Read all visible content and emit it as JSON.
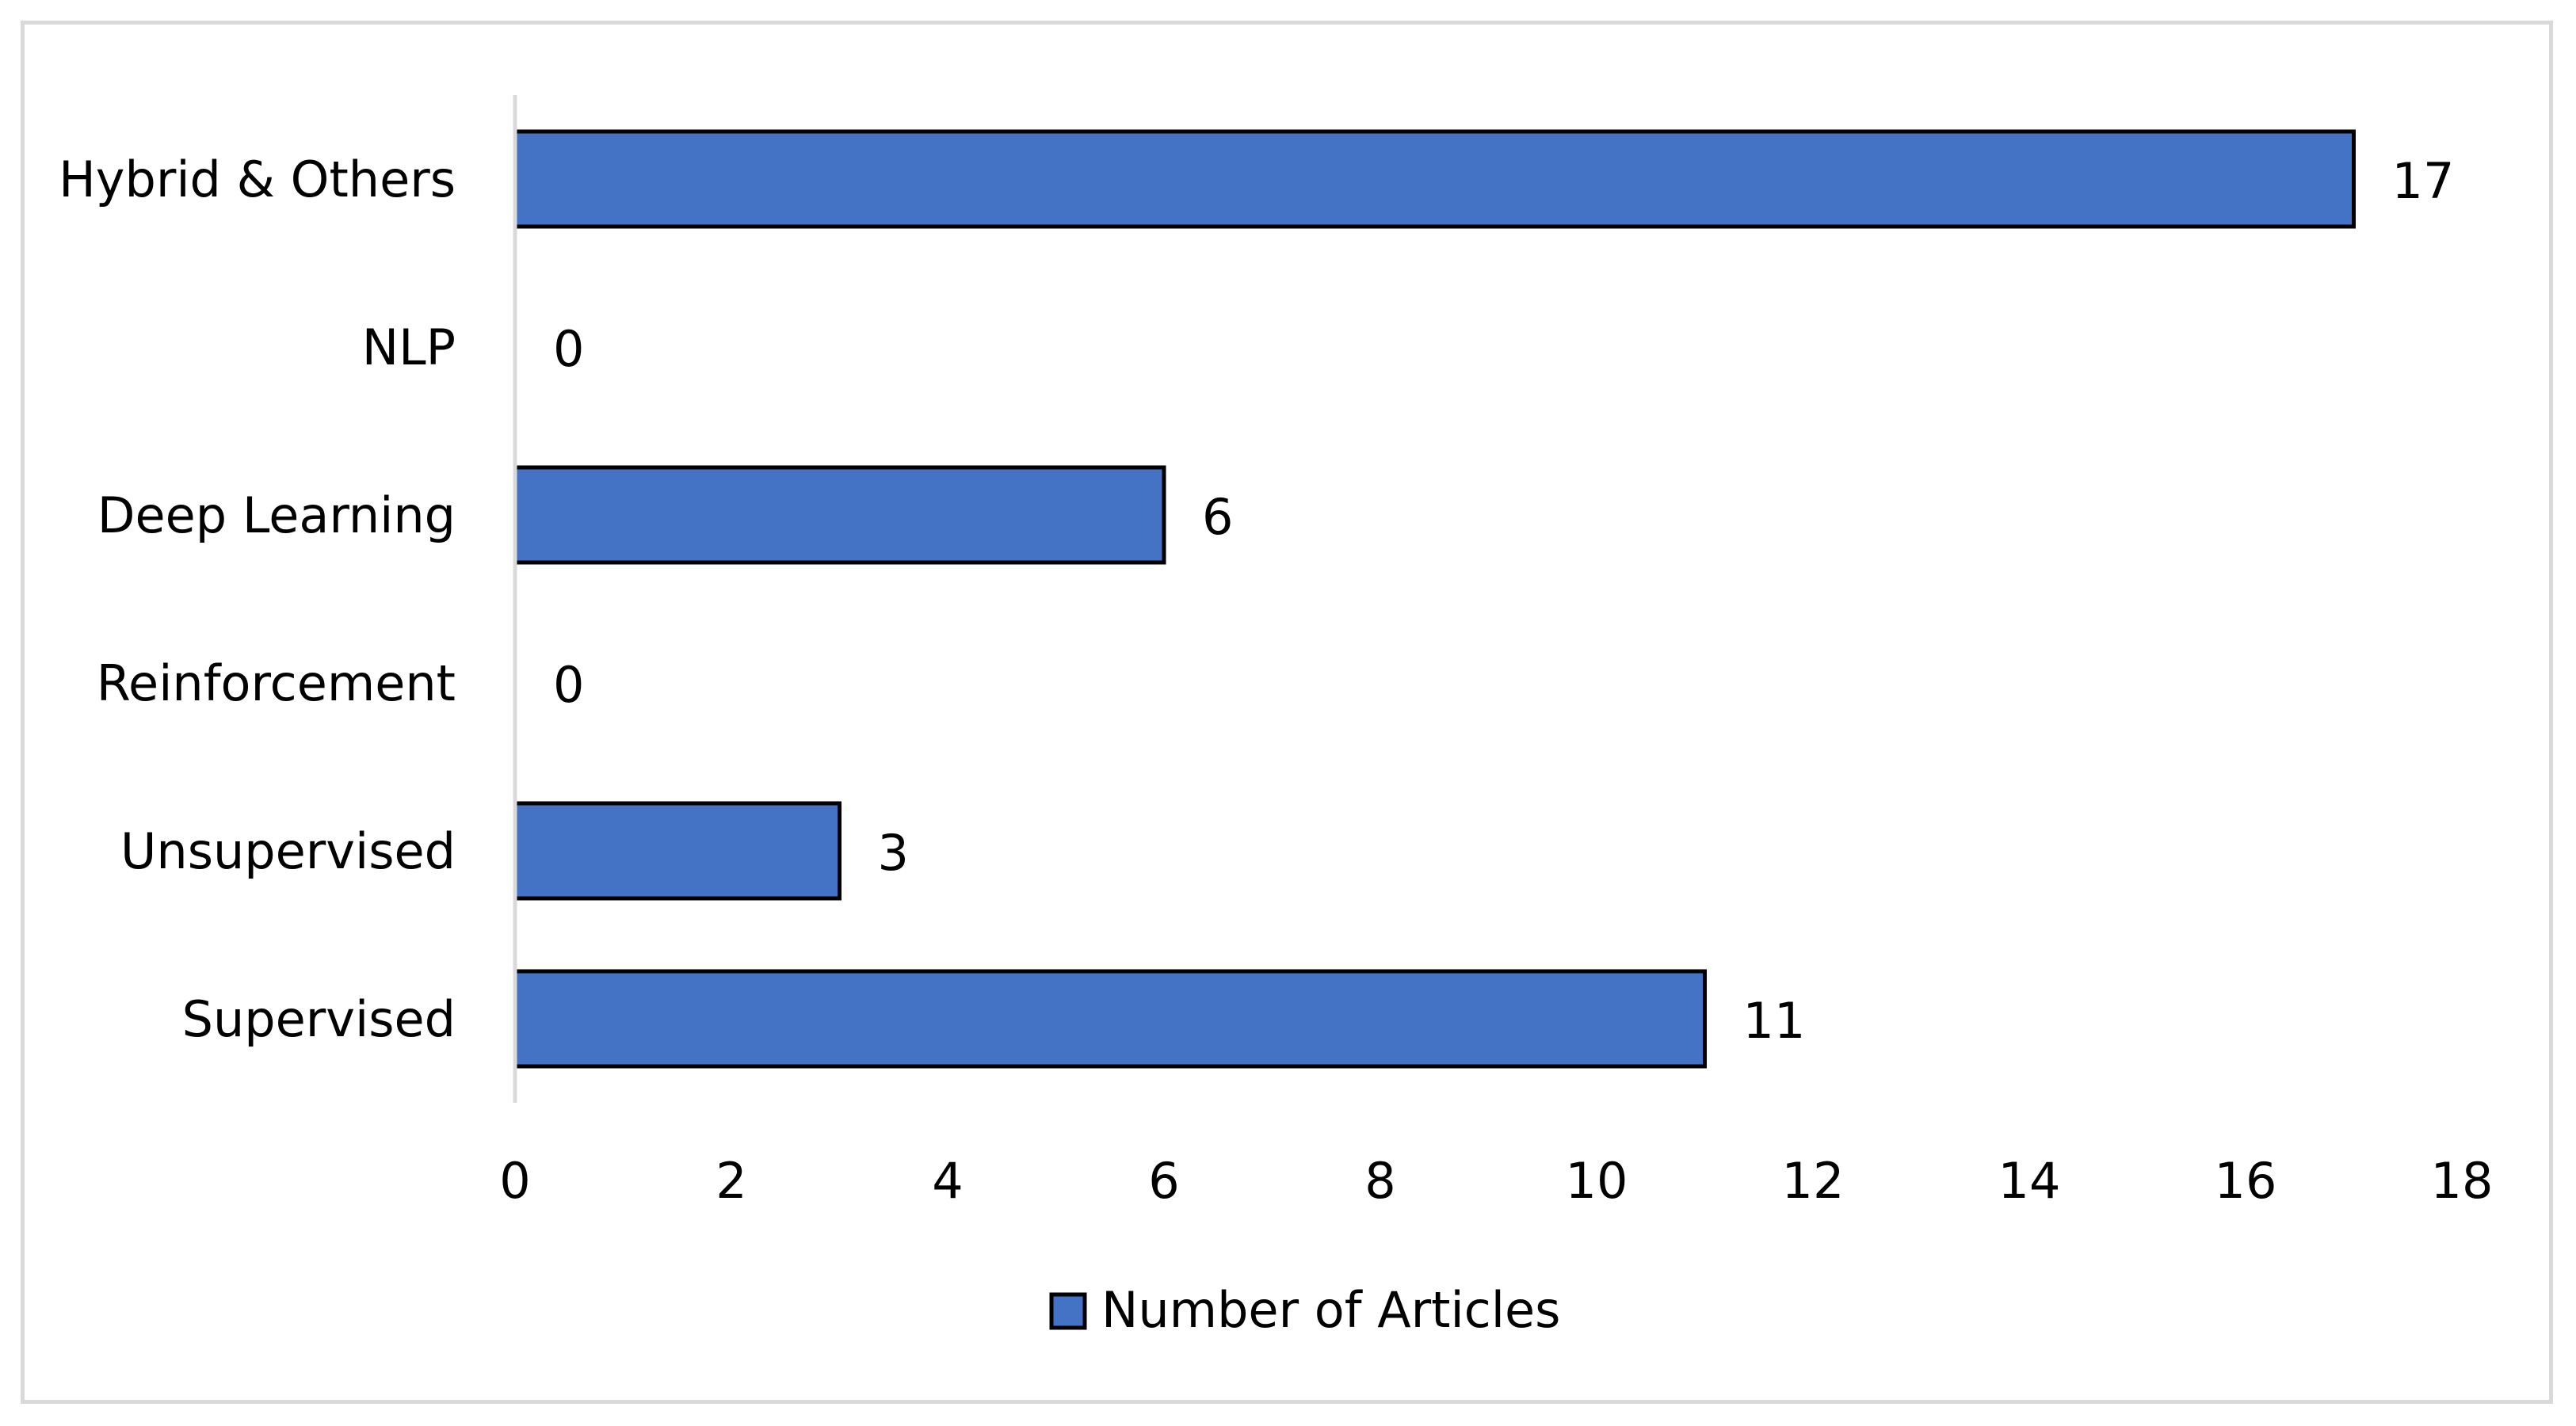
{
  "chart_data": {
    "type": "bar",
    "orientation": "horizontal",
    "categories": [
      "Supervised",
      "Unsupervised",
      "Reinforcement",
      "Deep Learning",
      "NLP",
      "Hybrid & Others"
    ],
    "series": [
      {
        "name": "Number of Articles",
        "values": [
          11,
          3,
          0,
          6,
          0,
          17
        ],
        "color": "#4472c4"
      }
    ],
    "title": "",
    "xlabel": "",
    "ylabel": "",
    "xlim": [
      0,
      18
    ],
    "x_ticks": [
      0,
      2,
      4,
      6,
      8,
      10,
      12,
      14,
      16,
      18
    ],
    "data_labels": true,
    "grid": false,
    "legend_position": "bottom"
  }
}
